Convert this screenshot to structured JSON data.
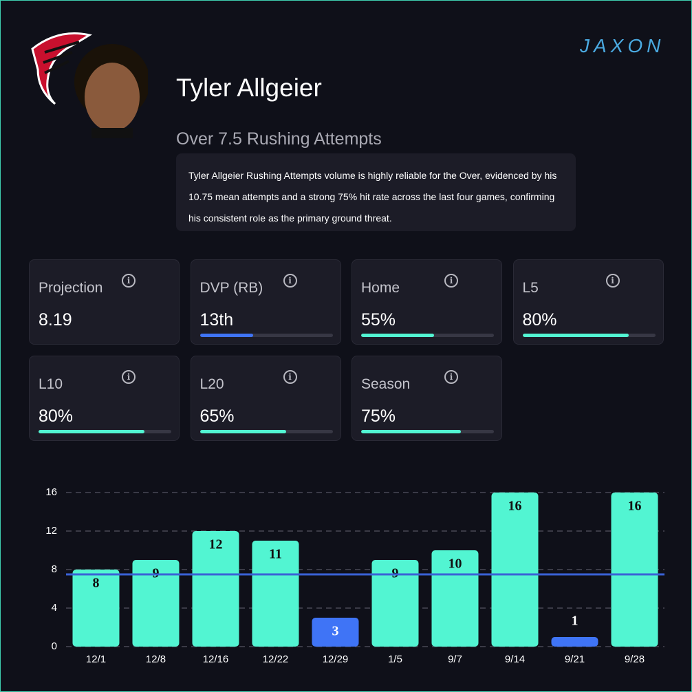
{
  "header": {
    "brand": "JAXON",
    "player": "Tyler Allgeier",
    "prop": "Over 7.5 Rushing Attempts",
    "summary": "Tyler Allgeier Rushing Attempts volume is highly reliable for the Over, evidenced by his 10.75 mean attempts and a strong 75% hit rate across the last four games, confirming his consistent role as the primary ground threat."
  },
  "stats": [
    {
      "label": "Projection",
      "display": "8.19",
      "bar": null,
      "bar_color": null
    },
    {
      "label": "DVP (RB)",
      "display": "13th",
      "bar": 40,
      "bar_color": "#3f74f6"
    },
    {
      "label": "Home",
      "display": "55%",
      "bar": 55,
      "bar_color": "#52f5d2"
    },
    {
      "label": "L5",
      "display": "80%",
      "bar": 80,
      "bar_color": "#52f5d2"
    },
    {
      "label": "L10",
      "display": "80%",
      "bar": 80,
      "bar_color": "#52f5d2"
    },
    {
      "label": "L20",
      "display": "65%",
      "bar": 65,
      "bar_color": "#52f5d2"
    },
    {
      "label": "Season",
      "display": "75%",
      "bar": 75,
      "bar_color": "#52f5d2"
    }
  ],
  "chart_data": {
    "type": "bar",
    "categories": [
      "12/1",
      "12/8",
      "12/16",
      "12/22",
      "12/29",
      "1/5",
      "9/7",
      "9/14",
      "9/21",
      "9/28"
    ],
    "values": [
      8,
      9,
      12,
      11,
      3,
      9,
      10,
      16,
      1,
      16
    ],
    "threshold": 7.5,
    "colors": {
      "over": "#52f5d2",
      "under": "#3f74f6"
    },
    "threshold_color": "#3a62d6",
    "ylim": [
      0,
      16
    ],
    "yticks": [
      0,
      4,
      8,
      12,
      16
    ],
    "grid": true
  }
}
